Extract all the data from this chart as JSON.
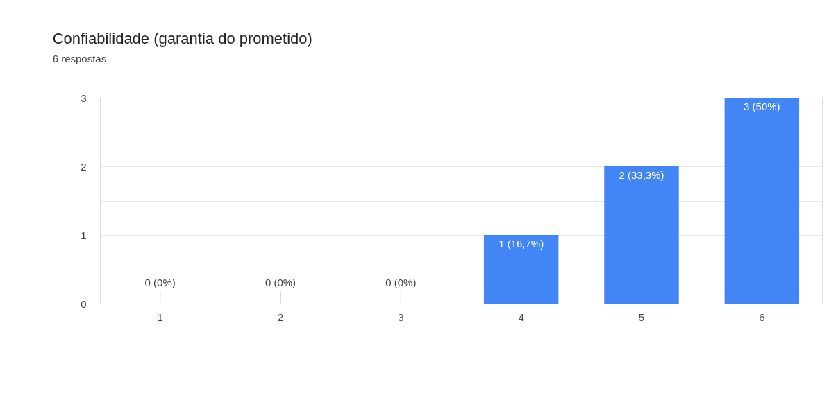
{
  "chart_data": {
    "type": "bar",
    "title": "Confiabilidade (garantia do prometido)",
    "subtitle": "6 respostas",
    "categories": [
      "1",
      "2",
      "3",
      "4",
      "5",
      "6"
    ],
    "series": [
      {
        "color": "#4285f4",
        "values": [
          0,
          0,
          0,
          1,
          2,
          3
        ]
      }
    ],
    "value_labels": [
      "0 (0%)",
      "0 (0%)",
      "0 (0%)",
      "1 (16,7%)",
      "2 (33,3%)",
      "3 (50%)"
    ],
    "ylim": [
      0,
      3
    ],
    "yticks": [
      0,
      {
        "value": 0.5,
        "label": null
      },
      1,
      {
        "value": 1.5,
        "label": null
      },
      2,
      {
        "value": 2.5,
        "label": null
      },
      3
    ],
    "grid": "y"
  }
}
